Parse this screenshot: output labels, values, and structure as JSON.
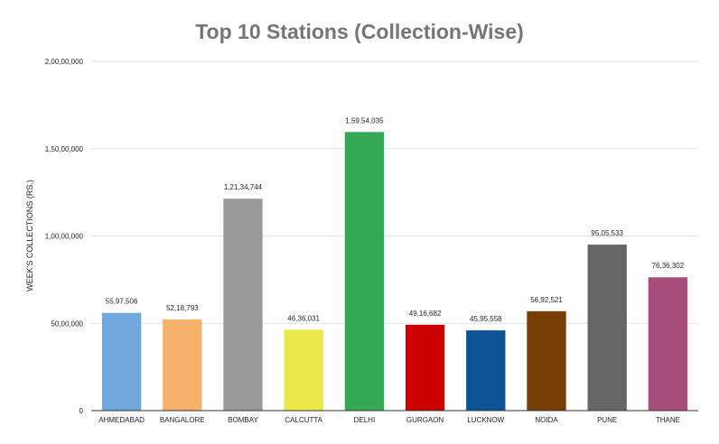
{
  "chart_data": {
    "type": "bar",
    "title": "Top 10 Stations (Collection-Wise)",
    "xlabel": "",
    "ylabel": "WEEK'S COLLECTIONS (RS.)",
    "ylim": [
      0,
      20000000
    ],
    "yticks": [
      0,
      5000000,
      10000000,
      15000000,
      20000000
    ],
    "ytick_labels": [
      "0",
      "50,00,000",
      "1,00,00,000",
      "1,50,00,000",
      "2,00,00,000"
    ],
    "grid": true,
    "legend": "none",
    "categories": [
      "AHMEDABAD",
      "BANGALORE",
      "BOMBAY",
      "CALCUTTA",
      "DELHI",
      "GURGAON",
      "LUCKNOW",
      "NOIDA",
      "PUNE",
      "THANE"
    ],
    "values": [
      5597506,
      5218793,
      12134744,
      4636031,
      15954035,
      4916682,
      4595558,
      5692521,
      9505533,
      7636302
    ],
    "value_labels": [
      "55,97,506",
      "52,18,793",
      "1,21,34,744",
      "46,36,031",
      "1,59,54,035",
      "49,16,682",
      "45,95,558",
      "56,92,521",
      "95,05,533",
      "76,36,302"
    ],
    "colors": [
      "#6fa8dc",
      "#f6b26b",
      "#999999",
      "#e9e94a",
      "#34a853",
      "#cc0000",
      "#0b5394",
      "#783f04",
      "#666666",
      "#a64d79"
    ]
  }
}
